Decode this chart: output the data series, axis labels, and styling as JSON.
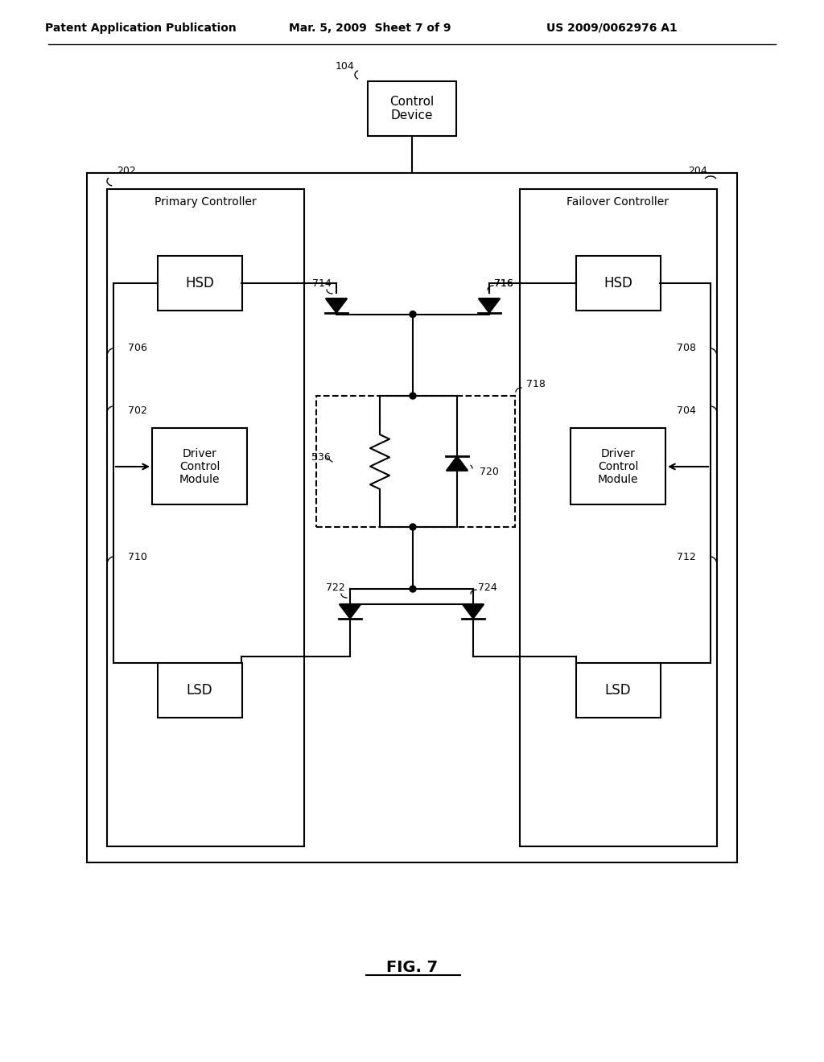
{
  "bg_color": "#ffffff",
  "line_color": "#000000",
  "header_left": "Patent Application Publication",
  "header_mid": "Mar. 5, 2009  Sheet 7 of 9",
  "header_right": "US 2009/0062976 A1",
  "figure_label": "FIG. 7",
  "control_device_label": "Control\nDevice",
  "control_device_ref": "104",
  "primary_controller_label": "Primary Controller",
  "primary_controller_ref": "202",
  "failover_controller_label": "Failover Controller",
  "failover_controller_ref": "204",
  "hsd_label": "HSD",
  "lsd_label": "LSD",
  "driver_control_label": "Driver\nControl\nModule",
  "ref_706": "706",
  "ref_708": "708",
  "ref_702": "702",
  "ref_704": "704",
  "ref_710": "710",
  "ref_712": "712",
  "ref_714": "714",
  "ref_716": "716",
  "ref_718": "718",
  "ref_720": "720",
  "ref_722": "722",
  "ref_724": "724",
  "ref_536": "536"
}
